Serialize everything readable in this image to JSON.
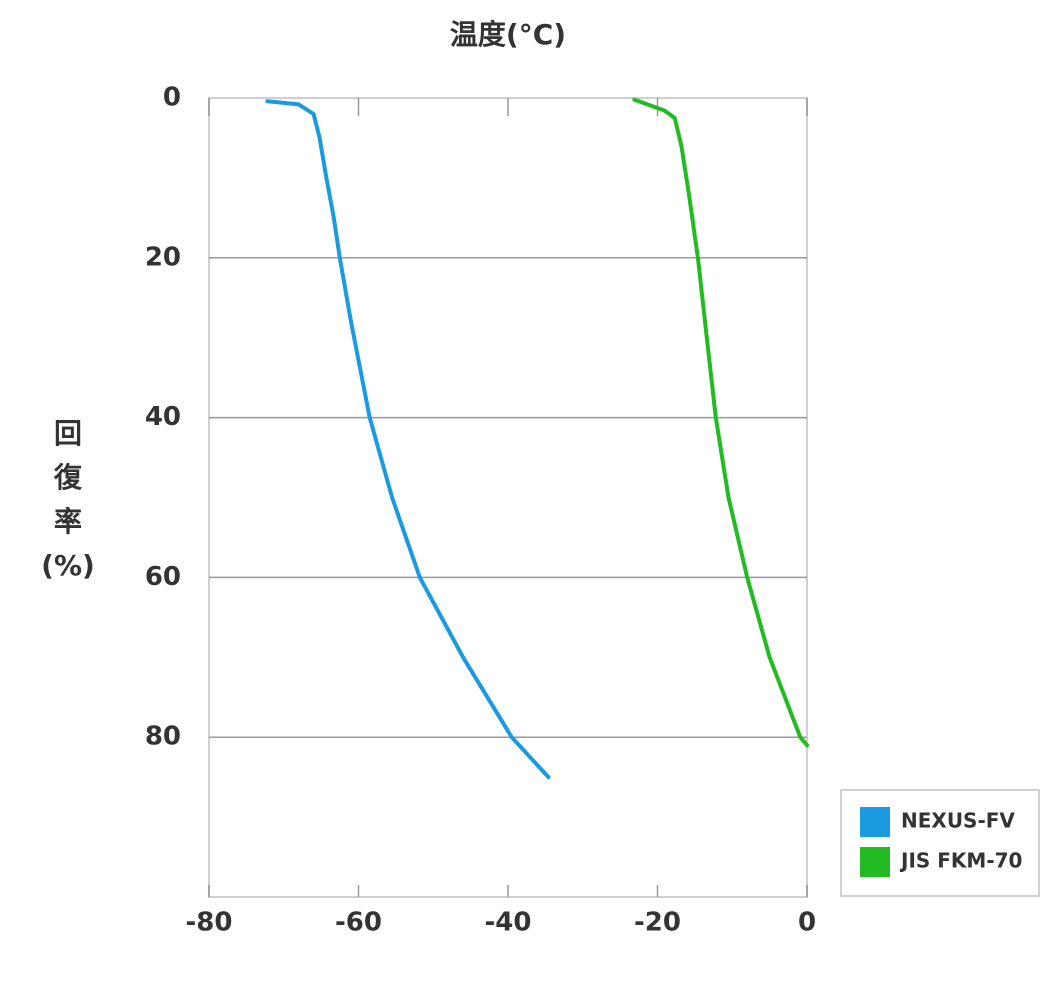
{
  "chart_data": {
    "type": "line",
    "x_label": "温度(°C)",
    "y_label": "回復率(%)",
    "series": [
      {
        "name": "NEXUS-FV",
        "color": "#1a9ae0",
        "x": [
          -72.2,
          -68,
          -66,
          -65.2,
          -64.3,
          -63.3,
          -62.5,
          -61,
          -58.5,
          -55.5,
          -51.8,
          -46,
          -39.5,
          -34.6
        ],
        "values": [
          0.4,
          0.8,
          2,
          5,
          10,
          15,
          20,
          28,
          40,
          50,
          60,
          70,
          80,
          85
        ]
      },
      {
        "name": "JIS FKM-70",
        "color": "#22bb22",
        "x": [
          -23.1,
          -19,
          -17.7,
          -16.8,
          -15.8,
          -14.6,
          -13.4,
          -12.2,
          -10.5,
          -8,
          -5,
          -0.9,
          0
        ],
        "values": [
          0.2,
          1.6,
          2.5,
          6,
          12,
          20,
          30,
          40,
          50,
          60,
          70,
          80,
          81
        ]
      }
    ],
    "xlim": [
      -80,
      0
    ],
    "xticks": [
      -80,
      -60,
      -40,
      -20,
      0
    ],
    "ylim": [
      0,
      100
    ],
    "yticks": [
      0,
      20,
      40,
      60,
      80
    ],
    "y_inverted": true,
    "grid": true
  }
}
